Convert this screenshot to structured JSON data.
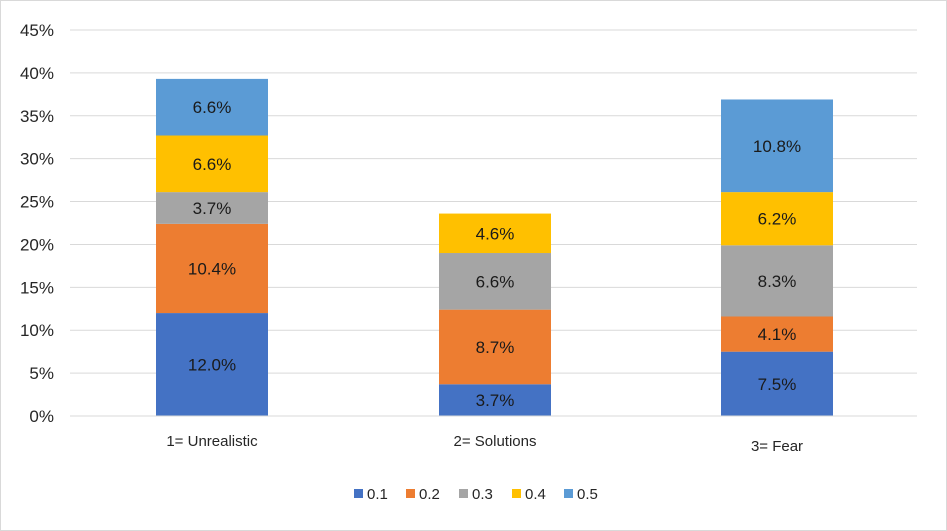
{
  "chart_data": {
    "type": "bar",
    "stacked": true,
    "categories": [
      "1= Unrealistic",
      "2= Solutions",
      "3= Fear"
    ],
    "series": [
      {
        "name": "0.1",
        "values": [
          12.0,
          3.7,
          7.5
        ],
        "color": "#4472c4"
      },
      {
        "name": "0.2",
        "values": [
          10.4,
          8.7,
          4.1
        ],
        "color": "#ed7d31"
      },
      {
        "name": "0.3",
        "values": [
          3.7,
          6.6,
          8.3
        ],
        "color": "#a5a5a5"
      },
      {
        "name": "0.4",
        "values": [
          6.6,
          4.6,
          6.2
        ],
        "color": "#ffc000"
      },
      {
        "name": "0.5",
        "values": [
          6.6,
          0,
          10.8
        ],
        "color": "#5b9bd5"
      }
    ],
    "data_labels": [
      [
        "12.0%",
        "3.7%",
        "7.5%"
      ],
      [
        "10.4%",
        "8.7%",
        "4.1%"
      ],
      [
        "3.7%",
        "6.6%",
        "8.3%"
      ],
      [
        "6.6%",
        "4.6%",
        "6.2%"
      ],
      [
        "6.6%",
        "",
        "10.8%"
      ]
    ],
    "ylim": [
      0,
      45
    ],
    "yticks": [
      0,
      5,
      10,
      15,
      20,
      25,
      30,
      35,
      40,
      45
    ],
    "ytick_labels": [
      "0%",
      "5%",
      "10%",
      "15%",
      "20%",
      "25%",
      "30%",
      "35%",
      "40%",
      "45%"
    ],
    "grid": true,
    "legend_position": "bottom"
  }
}
